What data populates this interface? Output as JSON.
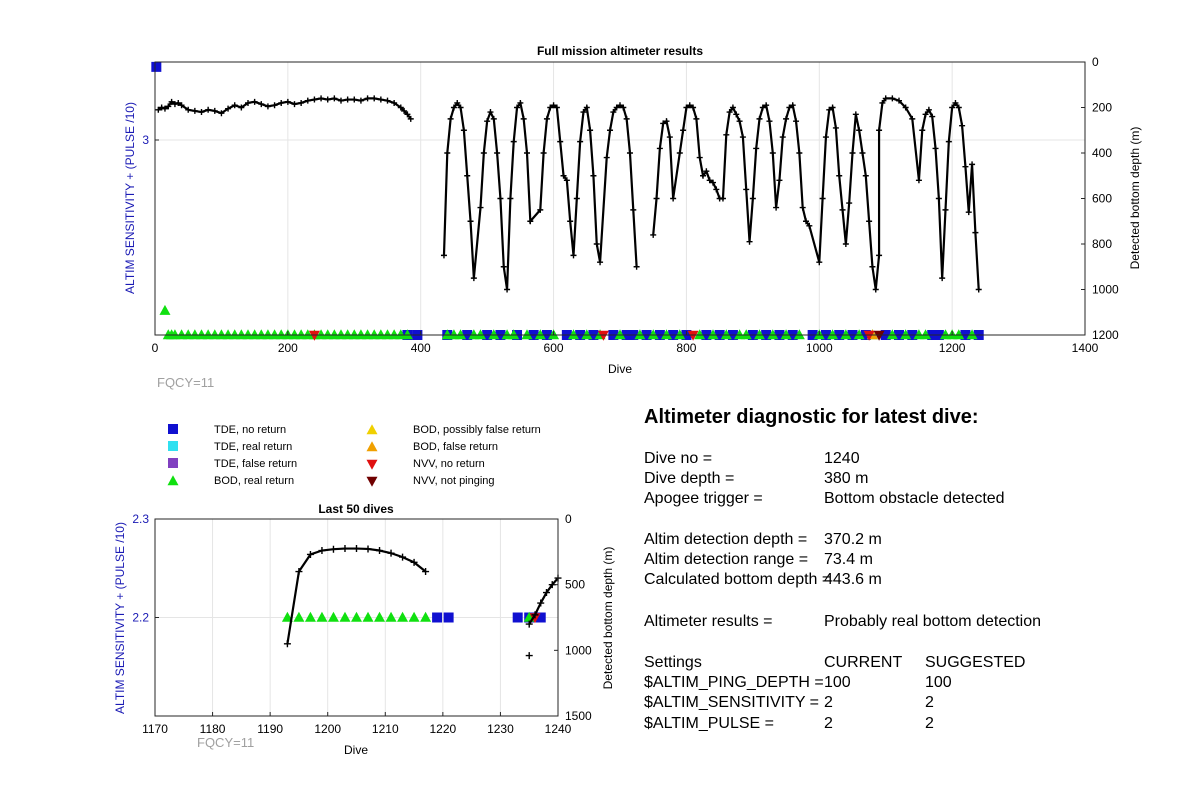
{
  "chart_data": [
    {
      "type": "scatter",
      "title": "Full mission altimeter results",
      "xlabel": "Dive",
      "ylabel_left": "ALTIM SENSITIVITY + (PULSE /10)",
      "ylabel_right": "Detected bottom depth (m)",
      "xlim": [
        0,
        1400
      ],
      "x_ticks": [
        0,
        200,
        400,
        600,
        800,
        1000,
        1200,
        1400
      ],
      "ylim_left": [
        2.2,
        3.32
      ],
      "y_ticks_left": [
        3
      ],
      "ylim_right": [
        1200,
        0
      ],
      "y_ticks_right": [
        0,
        200,
        400,
        600,
        800,
        1000,
        1200
      ],
      "grid": true,
      "annotation": "FQCY=11",
      "series": [
        {
          "name": "Detected bottom depth",
          "axis": "right",
          "x": [
            5,
            10,
            15,
            20,
            25,
            30,
            35,
            40,
            50,
            60,
            70,
            80,
            90,
            100,
            110,
            120,
            130,
            140,
            150,
            160,
            170,
            180,
            190,
            200,
            210,
            220,
            230,
            240,
            250,
            260,
            270,
            280,
            290,
            300,
            310,
            320,
            330,
            340,
            350,
            360,
            370,
            375,
            380,
            385,
            435,
            440,
            445,
            450,
            455,
            460,
            465,
            470,
            475,
            480,
            490,
            495,
            500,
            505,
            510,
            515,
            520,
            525,
            530,
            535,
            540,
            545,
            550,
            555,
            560,
            565,
            580,
            585,
            590,
            595,
            600,
            605,
            610,
            615,
            620,
            625,
            630,
            635,
            640,
            645,
            650,
            655,
            660,
            665,
            670,
            680,
            685,
            690,
            695,
            700,
            705,
            710,
            715,
            720,
            725,
            750,
            755,
            760,
            765,
            770,
            775,
            780,
            790,
            795,
            800,
            805,
            810,
            815,
            820,
            825,
            830,
            835,
            840,
            845,
            850,
            855,
            860,
            865,
            870,
            875,
            880,
            885,
            890,
            895,
            900,
            905,
            910,
            915,
            920,
            925,
            930,
            935,
            940,
            945,
            950,
            955,
            960,
            965,
            970,
            975,
            980,
            985,
            1000,
            1005,
            1010,
            1015,
            1020,
            1025,
            1030,
            1035,
            1040,
            1045,
            1050,
            1055,
            1060,
            1065,
            1070,
            1075,
            1080,
            1085,
            1090,
            1090,
            1095,
            1100,
            1110,
            1120,
            1130,
            1140,
            1150,
            1155,
            1160,
            1165,
            1170,
            1175,
            1180,
            1185,
            1190,
            1195,
            1200,
            1205,
            1210,
            1215,
            1220,
            1225,
            1230,
            1235,
            1240
          ],
          "y": [
            210,
            200,
            205,
            195,
            175,
            185,
            180,
            190,
            210,
            215,
            220,
            210,
            215,
            225,
            205,
            190,
            200,
            180,
            175,
            185,
            195,
            190,
            180,
            175,
            185,
            180,
            170,
            165,
            160,
            165,
            160,
            170,
            165,
            165,
            170,
            160,
            160,
            165,
            170,
            180,
            200,
            215,
            230,
            250,
            850,
            400,
            250,
            200,
            180,
            200,
            300,
            500,
            700,
            950,
            640,
            400,
            260,
            220,
            250,
            400,
            600,
            900,
            1000,
            600,
            350,
            200,
            180,
            250,
            400,
            700,
            650,
            400,
            250,
            200,
            190,
            200,
            350,
            500,
            520,
            700,
            850,
            600,
            350,
            220,
            200,
            300,
            500,
            800,
            880,
            420,
            300,
            220,
            200,
            190,
            200,
            250,
            400,
            650,
            900,
            760,
            600,
            380,
            270,
            260,
            330,
            600,
            400,
            300,
            200,
            190,
            200,
            250,
            420,
            500,
            480,
            520,
            530,
            560,
            600,
            600,
            320,
            220,
            200,
            230,
            260,
            330,
            560,
            790,
            600,
            380,
            250,
            200,
            190,
            260,
            400,
            640,
            520,
            330,
            250,
            200,
            190,
            260,
            400,
            640,
            700,
            720,
            880,
            600,
            330,
            210,
            200,
            290,
            500,
            650,
            800,
            620,
            400,
            230,
            300,
            400,
            500,
            700,
            900,
            1000,
            850,
            300,
            180,
            160,
            160,
            170,
            200,
            250,
            520,
            300,
            230,
            210,
            240,
            380,
            600,
            950,
            650,
            350,
            200,
            180,
            200,
            280,
            460,
            660,
            450,
            750,
            1000
          ]
        },
        {
          "name": "TDE, no return",
          "axis": "both",
          "x": [
            2,
            380,
            395,
            440,
            470,
            500,
            520,
            545,
            570,
            590,
            620,
            640,
            660,
            690,
            710,
            720,
            740,
            760,
            780,
            800,
            830,
            850,
            870,
            900,
            920,
            940,
            960,
            990,
            1010,
            1030,
            1050,
            1070,
            1100,
            1120,
            1140,
            1170,
            1180,
            1220,
            1240
          ],
          "y": [
            3.3,
            2.2,
            2.2,
            2.2,
            2.2,
            2.2,
            2.2,
            2.2,
            2.2,
            2.2,
            2.2,
            2.2,
            2.2,
            2.2,
            2.2,
            2.2,
            2.2,
            2.2,
            2.2,
            2.2,
            2.2,
            2.2,
            2.2,
            2.2,
            2.2,
            2.2,
            2.2,
            2.2,
            2.2,
            2.2,
            2.2,
            2.2,
            2.2,
            2.2,
            2.2,
            2.2,
            2.2,
            2.2,
            2.2
          ]
        },
        {
          "name": "BOD, real return",
          "axis": "left",
          "x": [
            15,
            20,
            25,
            30,
            40,
            50,
            60,
            70,
            80,
            90,
            100,
            110,
            120,
            130,
            140,
            150,
            160,
            170,
            180,
            190,
            200,
            210,
            220,
            230,
            240,
            250,
            260,
            270,
            280,
            290,
            300,
            310,
            320,
            330,
            340,
            350,
            360,
            370,
            380,
            440,
            450,
            460,
            480,
            490,
            510,
            530,
            540,
            560,
            580,
            600,
            630,
            650,
            670,
            700,
            730,
            750,
            770,
            790,
            820,
            840,
            860,
            880,
            890,
            910,
            930,
            950,
            970,
            1000,
            1020,
            1040,
            1060,
            1080,
            1110,
            1130,
            1150,
            1160,
            1190,
            1200,
            1210,
            1230
          ],
          "y": [
            2.3,
            2.2,
            2.2,
            2.2,
            2.2,
            2.2,
            2.2,
            2.2,
            2.2,
            2.2,
            2.2,
            2.2,
            2.2,
            2.2,
            2.2,
            2.2,
            2.2,
            2.2,
            2.2,
            2.2,
            2.2,
            2.2,
            2.2,
            2.2,
            2.2,
            2.2,
            2.2,
            2.2,
            2.2,
            2.2,
            2.2,
            2.2,
            2.2,
            2.2,
            2.2,
            2.2,
            2.2,
            2.2,
            2.2,
            2.2,
            2.2,
            2.2,
            2.2,
            2.2,
            2.2,
            2.2,
            2.2,
            2.2,
            2.2,
            2.2,
            2.2,
            2.2,
            2.2,
            2.2,
            2.2,
            2.2,
            2.2,
            2.2,
            2.2,
            2.2,
            2.2,
            2.2,
            2.2,
            2.2,
            2.2,
            2.2,
            2.2,
            2.2,
            2.2,
            2.2,
            2.2,
            2.2,
            2.2,
            2.2,
            2.2,
            2.2,
            2.2,
            2.2,
            2.2,
            2.2
          ]
        },
        {
          "name": "BOD, false return",
          "axis": "left",
          "x": [
            1080
          ],
          "y": [
            2.2
          ]
        },
        {
          "name": "NVV, no return",
          "axis": "left",
          "x": [
            240,
            675,
            810,
            1075
          ],
          "y": [
            2.2,
            2.2,
            2.2,
            2.2
          ]
        },
        {
          "name": "NVV, not pinging",
          "axis": "left",
          "x": [
            1090
          ],
          "y": [
            2.2
          ]
        }
      ]
    },
    {
      "type": "scatter",
      "title": "Last 50 dives",
      "xlabel": "Dive",
      "ylabel_left": "ALTIM SENSITIVITY + (PULSE /10)",
      "ylabel_right": "Detected bottom depth (m)",
      "xlim": [
        1170,
        1240
      ],
      "x_ticks": [
        1170,
        1180,
        1190,
        1200,
        1210,
        1220,
        1230,
        1240
      ],
      "ylim_left": [
        2.1,
        2.3
      ],
      "y_ticks_left": [
        2.2,
        2.3
      ],
      "ylim_right": [
        1500,
        0
      ],
      "y_ticks_right": [
        0,
        500,
        1000,
        1500
      ],
      "grid": true,
      "annotation": "FQCY=11",
      "series": [
        {
          "name": "Detected bottom depth",
          "axis": "right",
          "x": [
            1193,
            1195,
            1197,
            1199,
            1201,
            1203,
            1205,
            1207,
            1209,
            1211,
            1213,
            1215,
            1217,
            1235,
            1236,
            1237,
            1238,
            1239,
            1240
          ],
          "y": [
            950,
            400,
            270,
            240,
            230,
            225,
            225,
            228,
            240,
            260,
            290,
            330,
            400,
            800,
            730,
            640,
            560,
            500,
            450
          ]
        },
        {
          "name": "TDE, no return",
          "axis": "left",
          "x": [
            1219,
            1221,
            1233,
            1235,
            1237
          ],
          "y": [
            2.2,
            2.2,
            2.2,
            2.2,
            2.2
          ]
        },
        {
          "name": "BOD, real return",
          "axis": "left",
          "x": [
            1193,
            1195,
            1197,
            1199,
            1201,
            1203,
            1205,
            1207,
            1209,
            1211,
            1213,
            1215,
            1217,
            1235
          ],
          "y": [
            2.2,
            2.2,
            2.2,
            2.2,
            2.2,
            2.2,
            2.2,
            2.2,
            2.2,
            2.2,
            2.2,
            2.2,
            2.2,
            2.2
          ]
        },
        {
          "name": "NVV, no return",
          "axis": "left",
          "x": [
            1236
          ],
          "y": [
            2.2
          ]
        }
      ],
      "extra_points": [
        {
          "x": 1235,
          "y_right": 1040
        }
      ]
    }
  ],
  "legend": [
    {
      "label": "TDE, no return",
      "marker": "square",
      "color": "#1010d0"
    },
    {
      "label": "TDE, real return",
      "marker": "square",
      "color": "#30e0f0"
    },
    {
      "label": "TDE, false return",
      "marker": "square",
      "color": "#8040c0"
    },
    {
      "label": "BOD, real return",
      "marker": "triangle-up",
      "color": "#10e010"
    },
    {
      "label": "BOD, possibly false return",
      "marker": "triangle-up",
      "color": "#f0d000"
    },
    {
      "label": "BOD, false return",
      "marker": "triangle-up",
      "color": "#f0a000"
    },
    {
      "label": "NVV, no return",
      "marker": "triangle-down",
      "color": "#e01010"
    },
    {
      "label": "NVV, not pinging",
      "marker": "triangle-down",
      "color": "#700000"
    }
  ],
  "diagnostic": {
    "title": "Altimeter diagnostic for latest dive:",
    "rows1": [
      {
        "label": "Dive no =",
        "value": "1240"
      },
      {
        "label": "Dive depth =",
        "value": "380 m"
      },
      {
        "label": "Apogee trigger =",
        "value": "Bottom obstacle detected"
      }
    ],
    "rows2": [
      {
        "label": "Altim detection depth =",
        "value": "370.2 m"
      },
      {
        "label": "Altim detection range =",
        "value": "73.4 m"
      },
      {
        "label": "Calculated bottom depth =",
        "value": "443.6 m"
      }
    ],
    "results_label": "Altimeter results =",
    "results_value": "Probably real bottom detection",
    "settings": {
      "header_label": "Settings",
      "header_current": "CURRENT",
      "header_suggested": "SUGGESTED",
      "rows": [
        {
          "label": "$ALTIM_PING_DEPTH =",
          "current": "100",
          "suggested": "100"
        },
        {
          "label": "$ALTIM_SENSITIVITY =",
          "current": "2",
          "suggested": "2"
        },
        {
          "label": "$ALTIM_PULSE =",
          "current": "2",
          "suggested": "2"
        }
      ]
    }
  },
  "colors": {
    "axis": "#262626",
    "left_axis_label": "#1a1ab4",
    "grid": "#e5e5e5",
    "depth_line": "#000000",
    "fqcy": "#a0a0a0"
  }
}
